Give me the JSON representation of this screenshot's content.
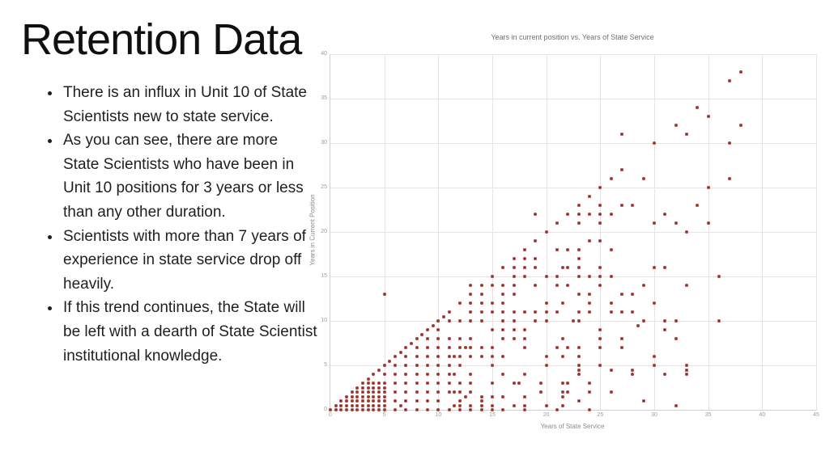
{
  "slide": {
    "title": "Retention Data",
    "bullets": [
      "There is an influx in Unit 10 of State Scientists new to state service.",
      "As you can see, there are more State Scientists who have been in Unit 10 positions for 3 years or less than any other duration.",
      "Scientists with more than 7 years of experience in state service drop off heavily.",
      "If this trend continues, the State will be left with a dearth of State Scientist institutional knowledge."
    ]
  },
  "chart_data": {
    "type": "scatter",
    "title": "Years in current position vs. Years of State Service",
    "xlabel": "Years of State Service",
    "ylabel": "Years in Current Position",
    "xlim": [
      0,
      45
    ],
    "ylim": [
      0,
      40
    ],
    "x_ticks": [
      0,
      5,
      10,
      15,
      20,
      25,
      30,
      35,
      40,
      45
    ],
    "y_ticks": [
      0,
      5,
      10,
      15,
      20,
      25,
      30,
      35,
      40
    ],
    "grid": true,
    "legend": false,
    "marker_color": "#a93c36",
    "points": [
      [
        0,
        0
      ],
      [
        0.5,
        0
      ],
      [
        0.5,
        0.5
      ],
      [
        1,
        0
      ],
      [
        1,
        0.5
      ],
      [
        1,
        1
      ],
      [
        1.5,
        0
      ],
      [
        1.5,
        0.5
      ],
      [
        1.5,
        1
      ],
      [
        1.5,
        1.5
      ],
      [
        2,
        0
      ],
      [
        2,
        0.5
      ],
      [
        2,
        1
      ],
      [
        2,
        1.5
      ],
      [
        2,
        2
      ],
      [
        2.5,
        0
      ],
      [
        2.5,
        0.5
      ],
      [
        2.5,
        1
      ],
      [
        2.5,
        1.5
      ],
      [
        2.5,
        2
      ],
      [
        2.5,
        2.5
      ],
      [
        3,
        0
      ],
      [
        3,
        0.5
      ],
      [
        3,
        1
      ],
      [
        3,
        1.5
      ],
      [
        3,
        2
      ],
      [
        3,
        2.5
      ],
      [
        3,
        3
      ],
      [
        3.5,
        0
      ],
      [
        3.5,
        0.5
      ],
      [
        3.5,
        1
      ],
      [
        3.5,
        1.5
      ],
      [
        3.5,
        2
      ],
      [
        3.5,
        2.5
      ],
      [
        3.5,
        3
      ],
      [
        3.5,
        3.5
      ],
      [
        4,
        0
      ],
      [
        4,
        0.5
      ],
      [
        4,
        1
      ],
      [
        4,
        1.5
      ],
      [
        4,
        2
      ],
      [
        4,
        2.5
      ],
      [
        4,
        3
      ],
      [
        4,
        4
      ],
      [
        4.5,
        0
      ],
      [
        4.5,
        0.5
      ],
      [
        4.5,
        1
      ],
      [
        4.5,
        1.5
      ],
      [
        4.5,
        2
      ],
      [
        4.5,
        2.5
      ],
      [
        4.5,
        3
      ],
      [
        4.5,
        4.5
      ],
      [
        5,
        0
      ],
      [
        5,
        0.5
      ],
      [
        5,
        1
      ],
      [
        5,
        1.5
      ],
      [
        5,
        2
      ],
      [
        5,
        2.5
      ],
      [
        5,
        3
      ],
      [
        5,
        4
      ],
      [
        5,
        5
      ],
      [
        5.5,
        5.5
      ],
      [
        6,
        6
      ],
      [
        6.5,
        6.5
      ],
      [
        7,
        7
      ],
      [
        7.5,
        7.5
      ],
      [
        8,
        8
      ],
      [
        8.5,
        8.5
      ],
      [
        9,
        9
      ],
      [
        9.5,
        9.5
      ],
      [
        10,
        10
      ],
      [
        10.5,
        10.5
      ],
      [
        11,
        11
      ],
      [
        6,
        1
      ],
      [
        6,
        2
      ],
      [
        6,
        3
      ],
      [
        6,
        4
      ],
      [
        6,
        5
      ],
      [
        7,
        1
      ],
      [
        7,
        2
      ],
      [
        7,
        3
      ],
      [
        7,
        4
      ],
      [
        7,
        5
      ],
      [
        7,
        6
      ],
      [
        8,
        1
      ],
      [
        8,
        2
      ],
      [
        8,
        3
      ],
      [
        8,
        4
      ],
      [
        8,
        5
      ],
      [
        8,
        6
      ],
      [
        8,
        7
      ],
      [
        9,
        1
      ],
      [
        9,
        2
      ],
      [
        9,
        3
      ],
      [
        9,
        4
      ],
      [
        9,
        5
      ],
      [
        9,
        6
      ],
      [
        9,
        7
      ],
      [
        9,
        8
      ],
      [
        10,
        1
      ],
      [
        10,
        2
      ],
      [
        10,
        3
      ],
      [
        10,
        4
      ],
      [
        10,
        5
      ],
      [
        10,
        6
      ],
      [
        10,
        7
      ],
      [
        10,
        8
      ],
      [
        10,
        9
      ],
      [
        11,
        2
      ],
      [
        11,
        3
      ],
      [
        11,
        4
      ],
      [
        11,
        5
      ],
      [
        11,
        6
      ],
      [
        11,
        7
      ],
      [
        11,
        8
      ],
      [
        11,
        10
      ],
      [
        6,
        0
      ],
      [
        7,
        0
      ],
      [
        8,
        0
      ],
      [
        9,
        0
      ],
      [
        10,
        0
      ],
      [
        11,
        0
      ],
      [
        12,
        0
      ],
      [
        13,
        0
      ],
      [
        14,
        0
      ],
      [
        15,
        0
      ],
      [
        16,
        0
      ],
      [
        18,
        0
      ],
      [
        21,
        0
      ],
      [
        24,
        0
      ],
      [
        6.5,
        0.5
      ],
      [
        11.5,
        0.5
      ],
      [
        12,
        0.5
      ],
      [
        13,
        0.5
      ],
      [
        14,
        0.5
      ],
      [
        15,
        0.5
      ],
      [
        17,
        0.5
      ],
      [
        18,
        0.5
      ],
      [
        20,
        0.5
      ],
      [
        21.5,
        0.5
      ],
      [
        32,
        0.5
      ],
      [
        12,
        1
      ],
      [
        14,
        1
      ],
      [
        23,
        1
      ],
      [
        29,
        1
      ],
      [
        12.5,
        1.5
      ],
      [
        14,
        1.5
      ],
      [
        15,
        1.5
      ],
      [
        16,
        1.5
      ],
      [
        18,
        1.5
      ],
      [
        21.5,
        1.5
      ],
      [
        11.5,
        2
      ],
      [
        12,
        2
      ],
      [
        13,
        2
      ],
      [
        19.5,
        2
      ],
      [
        21.5,
        2
      ],
      [
        22,
        2
      ],
      [
        24,
        2
      ],
      [
        26,
        2
      ],
      [
        12,
        3
      ],
      [
        13,
        3
      ],
      [
        15,
        3
      ],
      [
        17,
        3
      ],
      [
        17.5,
        3
      ],
      [
        19.5,
        3
      ],
      [
        21.5,
        3
      ],
      [
        22,
        3
      ],
      [
        24,
        3
      ],
      [
        11.5,
        4
      ],
      [
        13,
        4
      ],
      [
        16,
        4
      ],
      [
        18,
        4
      ],
      [
        23,
        4
      ],
      [
        23,
        4.5
      ],
      [
        26,
        4.5
      ],
      [
        28,
        4
      ],
      [
        28,
        4.5
      ],
      [
        31,
        4
      ],
      [
        33,
        4
      ],
      [
        33,
        4.5
      ],
      [
        12,
        5
      ],
      [
        15,
        5
      ],
      [
        20,
        5
      ],
      [
        23,
        5
      ],
      [
        25,
        5
      ],
      [
        30,
        5
      ],
      [
        33,
        5
      ],
      [
        11.5,
        6
      ],
      [
        12,
        6
      ],
      [
        13,
        6
      ],
      [
        14,
        6
      ],
      [
        15,
        6
      ],
      [
        16,
        6
      ],
      [
        20,
        6
      ],
      [
        21.5,
        6
      ],
      [
        23,
        6
      ],
      [
        30,
        6
      ],
      [
        12,
        7
      ],
      [
        12.5,
        7
      ],
      [
        13,
        7
      ],
      [
        14,
        7
      ],
      [
        15,
        7
      ],
      [
        18,
        7
      ],
      [
        21,
        7
      ],
      [
        22,
        7
      ],
      [
        23,
        7
      ],
      [
        25,
        7
      ],
      [
        27,
        7
      ],
      [
        12,
        8
      ],
      [
        13,
        8
      ],
      [
        16,
        8
      ],
      [
        17,
        8
      ],
      [
        18,
        8
      ],
      [
        21.5,
        8
      ],
      [
        25,
        8
      ],
      [
        27,
        8
      ],
      [
        32,
        8
      ],
      [
        15,
        9
      ],
      [
        16,
        9
      ],
      [
        17,
        9
      ],
      [
        18,
        9
      ],
      [
        25,
        9
      ],
      [
        28.5,
        9.5
      ],
      [
        31,
        9
      ],
      [
        12,
        10
      ],
      [
        13,
        10
      ],
      [
        14,
        10
      ],
      [
        16,
        10
      ],
      [
        17,
        10
      ],
      [
        19,
        10
      ],
      [
        20,
        10
      ],
      [
        22.5,
        10
      ],
      [
        23,
        10
      ],
      [
        29,
        10
      ],
      [
        31,
        10
      ],
      [
        32,
        10
      ],
      [
        36,
        10
      ],
      [
        13,
        11
      ],
      [
        14,
        11
      ],
      [
        15,
        11
      ],
      [
        16,
        11
      ],
      [
        17,
        11
      ],
      [
        18,
        11
      ],
      [
        19,
        11
      ],
      [
        20,
        11
      ],
      [
        21,
        11
      ],
      [
        23,
        11
      ],
      [
        24,
        11
      ],
      [
        26,
        11
      ],
      [
        27,
        11
      ],
      [
        28,
        11
      ],
      [
        13,
        12
      ],
      [
        14,
        12
      ],
      [
        15,
        12
      ],
      [
        16,
        12
      ],
      [
        20,
        12
      ],
      [
        21.5,
        12
      ],
      [
        24,
        12
      ],
      [
        26,
        12
      ],
      [
        30,
        12
      ],
      [
        5,
        13
      ],
      [
        14,
        13
      ],
      [
        16,
        13
      ],
      [
        17,
        13
      ],
      [
        23,
        13
      ],
      [
        24,
        13
      ],
      [
        27,
        13
      ],
      [
        28,
        13
      ],
      [
        13,
        14
      ],
      [
        15,
        14
      ],
      [
        16,
        14
      ],
      [
        17,
        14
      ],
      [
        19,
        14
      ],
      [
        21,
        14
      ],
      [
        22,
        14
      ],
      [
        25,
        14
      ],
      [
        29,
        14
      ],
      [
        33,
        14
      ],
      [
        17,
        15
      ],
      [
        18,
        15
      ],
      [
        20,
        15
      ],
      [
        21,
        15
      ],
      [
        23,
        15
      ],
      [
        24,
        15
      ],
      [
        25,
        15
      ],
      [
        26,
        15
      ],
      [
        36,
        15
      ],
      [
        17,
        16
      ],
      [
        18,
        16
      ],
      [
        19,
        16
      ],
      [
        21.5,
        16
      ],
      [
        22,
        16
      ],
      [
        23,
        16
      ],
      [
        25,
        16
      ],
      [
        30,
        16
      ],
      [
        31,
        16
      ],
      [
        18,
        17
      ],
      [
        19,
        17
      ],
      [
        23,
        17
      ],
      [
        21,
        18
      ],
      [
        22,
        18
      ],
      [
        23,
        18
      ],
      [
        26,
        18
      ],
      [
        24,
        19
      ],
      [
        25,
        19
      ],
      [
        33,
        20
      ],
      [
        23,
        21
      ],
      [
        25,
        21
      ],
      [
        30,
        21
      ],
      [
        32,
        21
      ],
      [
        35,
        21
      ],
      [
        19,
        22
      ],
      [
        23,
        22
      ],
      [
        24,
        22
      ],
      [
        25,
        22
      ],
      [
        26,
        22
      ],
      [
        31,
        22
      ],
      [
        25,
        23
      ],
      [
        27,
        23
      ],
      [
        28,
        23
      ],
      [
        34,
        23
      ],
      [
        35,
        25
      ],
      [
        29,
        26
      ],
      [
        37,
        26
      ],
      [
        37,
        30
      ],
      [
        27,
        31
      ],
      [
        33,
        31
      ],
      [
        38,
        32
      ],
      [
        35,
        33
      ],
      [
        12,
        12
      ],
      [
        13,
        13
      ],
      [
        14,
        14
      ],
      [
        15,
        15
      ],
      [
        16,
        16
      ],
      [
        17,
        17
      ],
      [
        18,
        18
      ],
      [
        19,
        19
      ],
      [
        20,
        20
      ],
      [
        21,
        21
      ],
      [
        22,
        22
      ],
      [
        23,
        23
      ],
      [
        24,
        24
      ],
      [
        25,
        25
      ],
      [
        26,
        26
      ],
      [
        27,
        27
      ],
      [
        30,
        30
      ],
      [
        32,
        32
      ],
      [
        34,
        34
      ],
      [
        37,
        37
      ],
      [
        38,
        38
      ]
    ]
  }
}
